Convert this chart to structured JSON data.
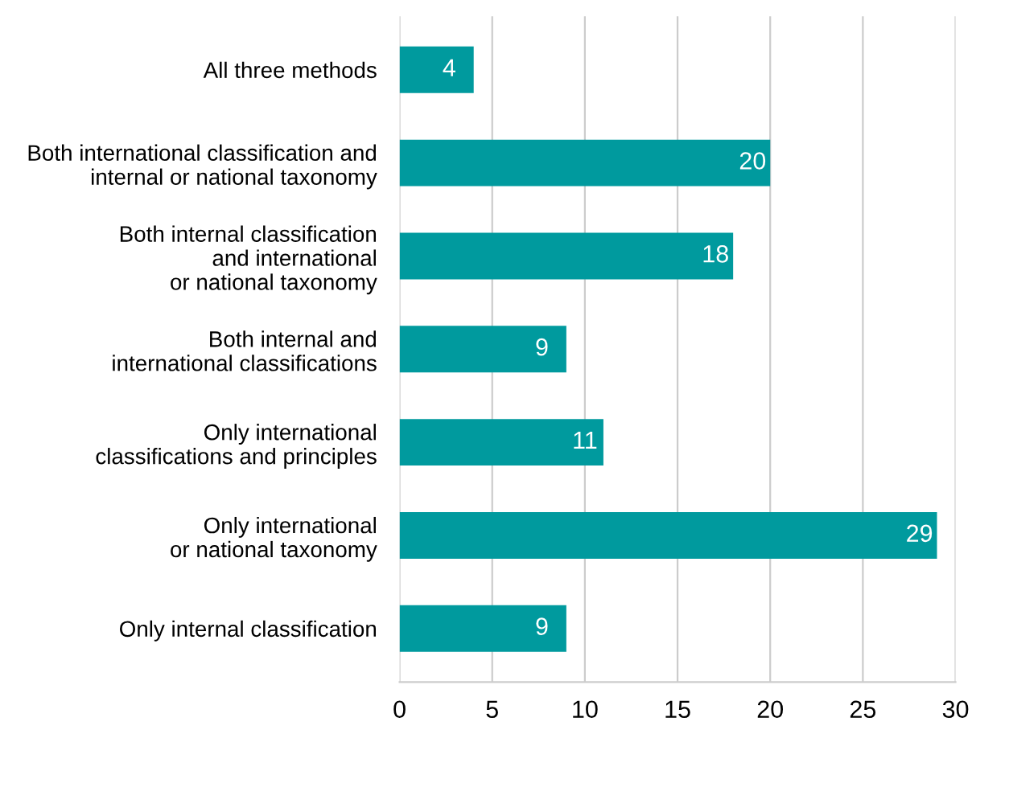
{
  "chart_data": {
    "type": "bar",
    "orientation": "horizontal",
    "categories": [
      "All three methods",
      "Both international classification and\ninternal or national taxonomy",
      "Both internal classification\nand international\nor national taxonomy",
      "Both internal and\ninternational classifications",
      "Only international\nclassifications and principles",
      "Only international\nor national taxonomy",
      "Only internal classification"
    ],
    "values": [
      4,
      20,
      18,
      9,
      11,
      29,
      9
    ],
    "color": "#009a9e",
    "xlim": [
      0,
      30
    ],
    "xticks": [
      0,
      5,
      10,
      15,
      20,
      25,
      30
    ],
    "grid": "x",
    "data_labels": true
  }
}
